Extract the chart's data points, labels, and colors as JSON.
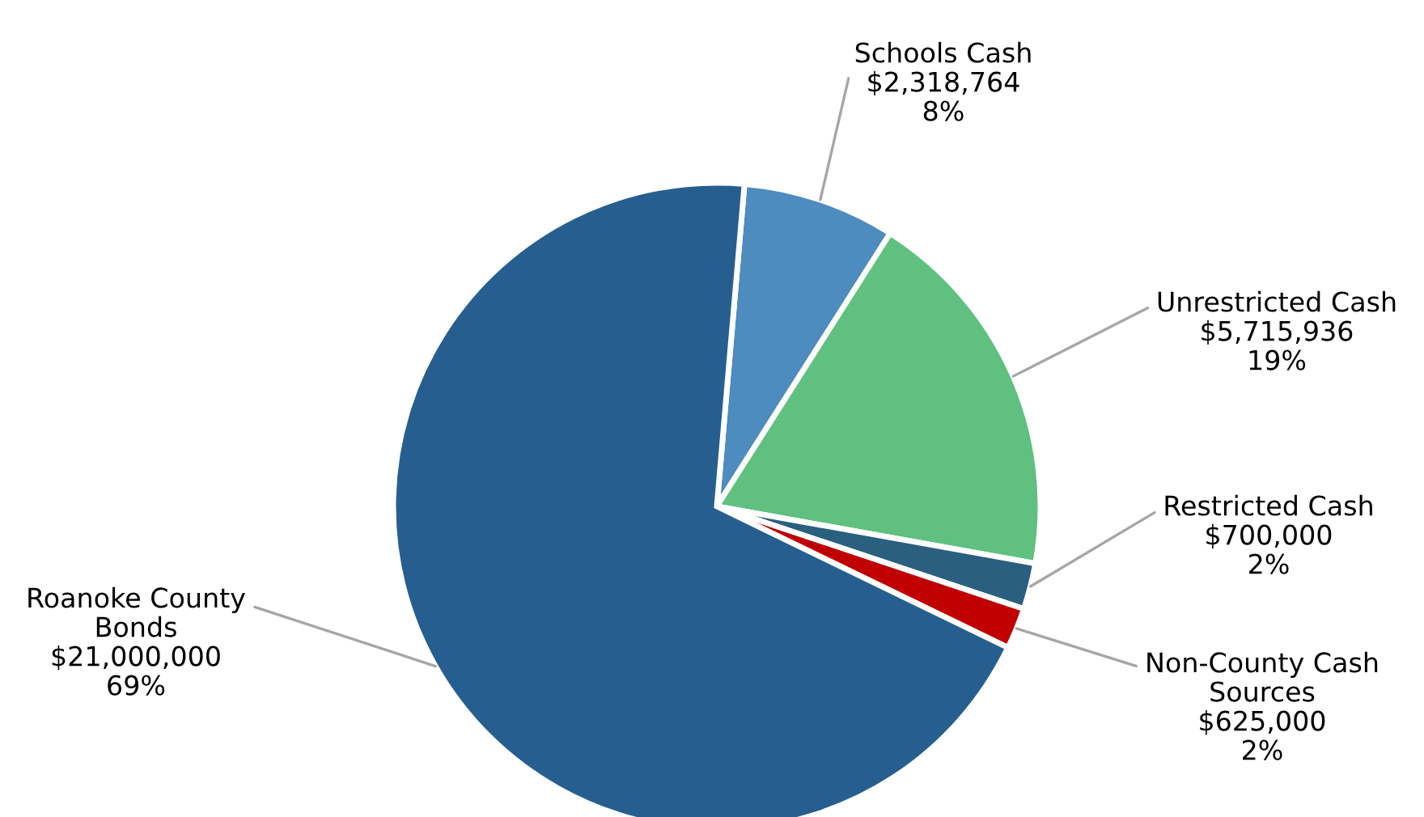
{
  "chart_data": {
    "type": "pie",
    "categories": [
      "Schools Cash",
      "Unrestricted Cash",
      "Restricted Cash",
      "Non-County Cash\nSources",
      "Roanoke County\nBonds"
    ],
    "values": [
      2318764,
      5715936,
      700000,
      625000,
      21000000
    ],
    "value_labels": [
      "$2,318,764\n8%",
      "$5,715,936\n19%",
      "$700,000\n2%",
      "$625,000\n2%",
      "$21,000,000\n69%"
    ],
    "colors": [
      "#4e8bbf",
      "#5fc080",
      "#2a5f80",
      "#c00000",
      "#265f8f"
    ],
    "legend": false
  }
}
